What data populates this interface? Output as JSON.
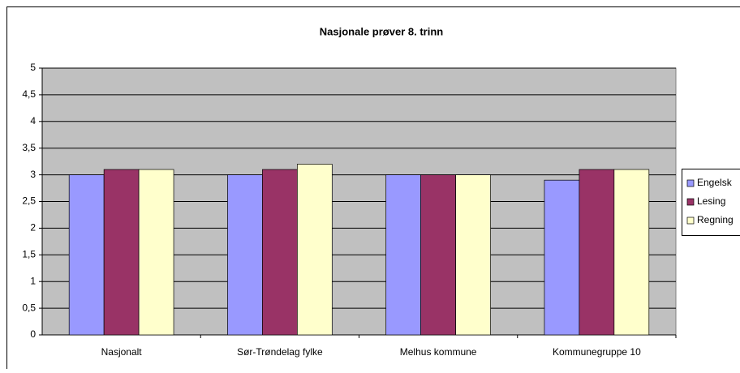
{
  "chart_data": {
    "type": "bar",
    "title": "Nasjonale prøver 8. trinn",
    "categories": [
      "Nasjonalt",
      "Sør-Trøndelag fylke",
      "Melhus kommune",
      "Kommunegruppe 10"
    ],
    "series": [
      {
        "name": "Engelsk",
        "color": "#9999ff",
        "values": [
          3,
          3,
          3,
          2.9
        ]
      },
      {
        "name": "Lesing",
        "color": "#993366",
        "values": [
          3.1,
          3.1,
          3,
          3.1
        ]
      },
      {
        "name": "Regning",
        "color": "#ffffcc",
        "values": [
          3.1,
          3.2,
          3,
          3.1
        ]
      }
    ],
    "ylim": [
      0,
      5
    ],
    "yticks": [
      0,
      {
        "value": 0.5,
        "label": "0,5"
      },
      1,
      {
        "value": 1.5,
        "label": "1,5"
      },
      2,
      {
        "value": 2.5,
        "label": "2,5"
      },
      3,
      {
        "value": 3.5,
        "label": "3,5"
      },
      4,
      {
        "value": 4.5,
        "label": "4,5"
      },
      5
    ],
    "grid": true,
    "legend": "right"
  }
}
